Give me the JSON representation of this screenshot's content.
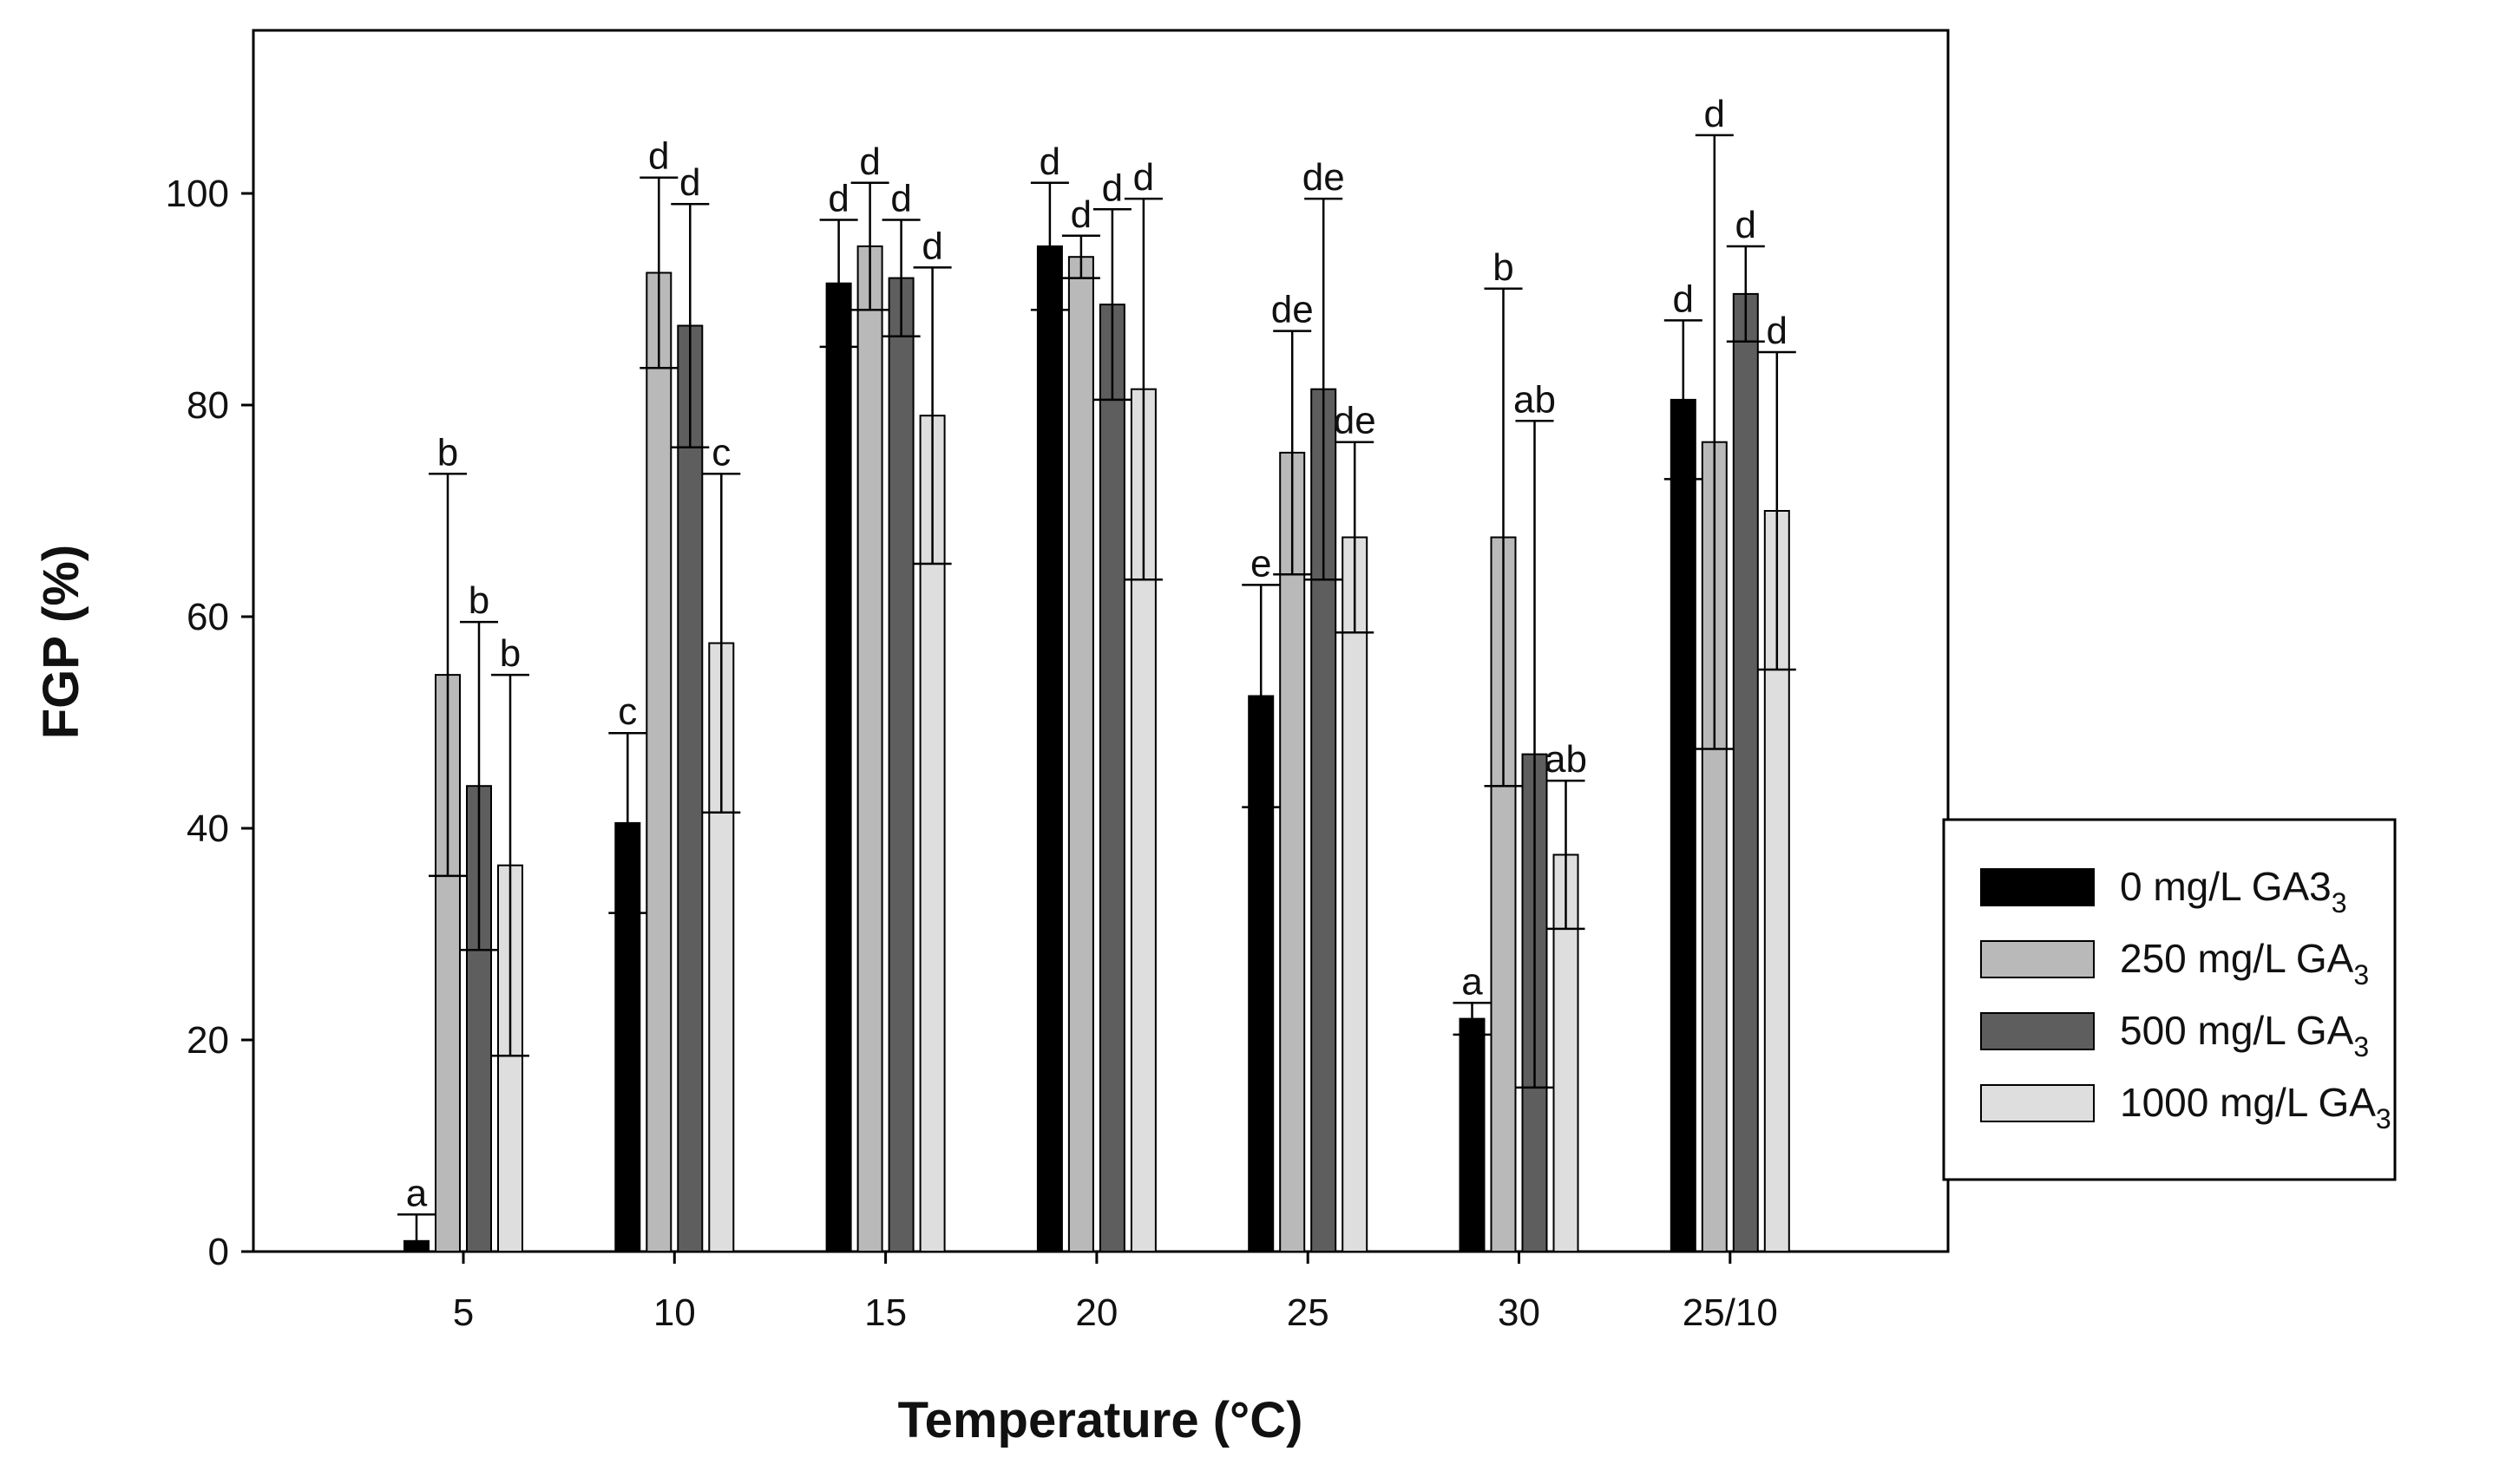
{
  "chart_data": {
    "type": "bar",
    "title": "",
    "xlabel": "Temperature (°C)",
    "ylabel": "FGP (%)",
    "ylim": [
      0,
      115
    ],
    "yticks": [
      0,
      20,
      40,
      60,
      80,
      100
    ],
    "categories": [
      "5",
      "10",
      "15",
      "20",
      "25",
      "30",
      "25/10"
    ],
    "legend_position": "right",
    "series": [
      {
        "name": "0 mg/L GA3",
        "subscript": "3",
        "color": "#000000",
        "values": [
          1,
          40.5,
          91.5,
          95,
          52.5,
          22,
          80.5
        ],
        "errors": [
          2.5,
          8.5,
          6,
          6,
          10.5,
          1.5,
          7.5
        ],
        "letters": [
          "a",
          "c",
          "d",
          "d",
          "e",
          "a",
          "d"
        ]
      },
      {
        "name": "250 mg/L GA",
        "subscript": "3",
        "color": "#b9b9b9",
        "values": [
          54.5,
          92.5,
          95,
          94,
          75.5,
          67.5,
          76.5
        ],
        "errors": [
          19,
          9,
          6,
          2,
          11.5,
          23.5,
          29
        ],
        "letters": [
          "b",
          "d",
          "d",
          "d",
          "de",
          "b",
          "d"
        ]
      },
      {
        "name": "500 mg/L GA",
        "subscript": "3",
        "color": "#5e5e5e",
        "values": [
          44,
          87.5,
          92,
          89.5,
          81.5,
          47,
          90.5
        ],
        "errors": [
          15.5,
          11.5,
          5.5,
          9,
          18,
          31.5,
          4.5
        ],
        "letters": [
          "b",
          "d",
          "d",
          "d",
          "de",
          "ab",
          "d"
        ]
      },
      {
        "name": "1000 mg/L GA",
        "subscript": "3",
        "color": "#dedede",
        "values": [
          36.5,
          57.5,
          79,
          81.5,
          67.5,
          37.5,
          70
        ],
        "errors": [
          18,
          16,
          14,
          18,
          9,
          7,
          15
        ],
        "letters": [
          "b",
          "c",
          "d",
          "d",
          "de",
          "ab",
          "d"
        ]
      }
    ]
  }
}
